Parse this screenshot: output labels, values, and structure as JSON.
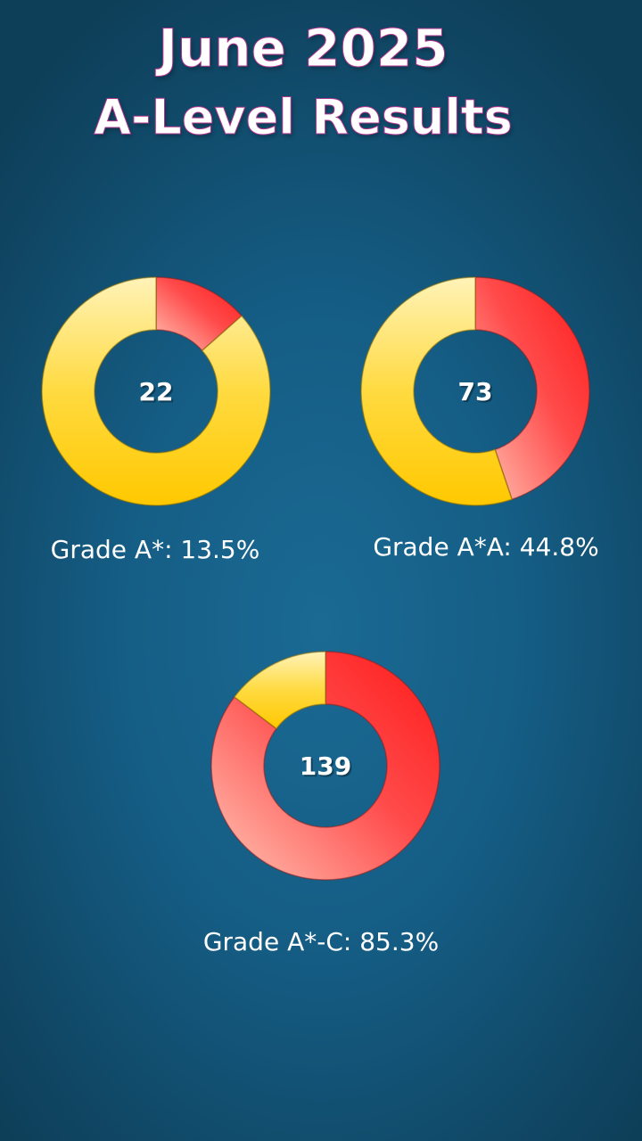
{
  "title": {
    "line1": "June 2025",
    "line2": "A-Level Results"
  },
  "colors": {
    "highlight": "#ff2a2a",
    "remainder": "#ffcc00",
    "background": "#155d85",
    "title_outline": "#b1358f"
  },
  "chart_data": [
    {
      "type": "pie",
      "subtype": "donut",
      "center_value": "22",
      "label": "Grade A*: 13.5%",
      "values": [
        13.5,
        86.5
      ]
    },
    {
      "type": "pie",
      "subtype": "donut",
      "center_value": "73",
      "label": "Grade A*A: 44.8%",
      "values": [
        44.8,
        55.2
      ]
    },
    {
      "type": "pie",
      "subtype": "donut",
      "center_value": "139",
      "label": "Grade A*-C: 85.3%",
      "values": [
        85.3,
        14.7
      ]
    }
  ]
}
